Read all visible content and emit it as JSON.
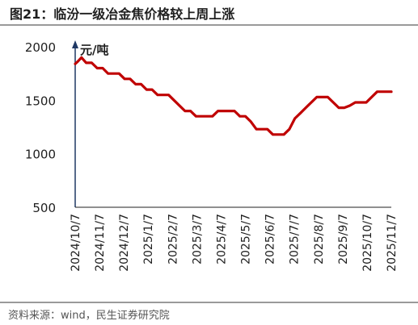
{
  "figure": {
    "title": "图21：临汾一级冶金焦价格较上周上涨",
    "source": "资料来源：wind，民生证券研究院"
  },
  "colors": {
    "line": "#c00000",
    "axis": "#1f3864",
    "text": "#1f1f1f"
  },
  "chart_data": {
    "type": "line",
    "ylabel": "元/吨",
    "ylim": [
      500,
      2000
    ],
    "yticks": [
      500,
      1000,
      1500,
      2000
    ],
    "xticks": [
      "2024/10/7",
      "2024/11/7",
      "2024/12/7",
      "2025/1/7",
      "2025/2/7",
      "2025/3/7",
      "2025/4/7",
      "2025/5/7",
      "2025/6/7",
      "2025/7/7",
      "2025/8/7",
      "2025/9/7",
      "2025/10/7",
      "2025/11/7"
    ],
    "xlim": [
      "2024-09-30",
      "2025-11-07"
    ],
    "x": [
      "2024-09-30",
      "2024-10-03",
      "2024-10-08",
      "2024-10-14",
      "2024-10-21",
      "2024-10-28",
      "2024-11-04",
      "2024-11-11",
      "2024-11-18",
      "2024-11-25",
      "2024-12-02",
      "2024-12-09",
      "2024-12-16",
      "2024-12-23",
      "2024-12-30",
      "2025-01-06",
      "2025-01-13",
      "2025-01-20",
      "2025-01-27",
      "2025-02-03",
      "2025-02-10",
      "2025-02-17",
      "2025-02-24",
      "2025-03-03",
      "2025-03-10",
      "2025-03-17",
      "2025-03-24",
      "2025-03-31",
      "2025-04-07",
      "2025-04-14",
      "2025-04-21",
      "2025-04-28",
      "2025-05-05",
      "2025-05-12",
      "2025-05-19",
      "2025-05-26",
      "2025-06-02",
      "2025-06-09",
      "2025-06-16",
      "2025-06-23",
      "2025-06-30",
      "2025-07-07",
      "2025-07-14",
      "2025-07-21",
      "2025-07-28",
      "2025-08-04",
      "2025-08-11",
      "2025-08-18",
      "2025-08-25",
      "2025-09-01",
      "2025-09-08",
      "2025-09-15",
      "2025-09-22",
      "2025-09-29",
      "2025-10-06",
      "2025-10-13",
      "2025-10-20",
      "2025-10-27",
      "2025-11-03",
      "2025-11-07"
    ],
    "series": [
      {
        "values": [
          1840,
          1860,
          1900,
          1850,
          1850,
          1800,
          1800,
          1750,
          1750,
          1750,
          1700,
          1700,
          1650,
          1650,
          1600,
          1600,
          1550,
          1550,
          1550,
          1500,
          1450,
          1400,
          1400,
          1350,
          1350,
          1350,
          1350,
          1400,
          1400,
          1400,
          1400,
          1350,
          1350,
          1300,
          1230,
          1230,
          1230,
          1180,
          1180,
          1180,
          1230,
          1330,
          1380,
          1430,
          1480,
          1530,
          1530,
          1530,
          1480,
          1430,
          1430,
          1450,
          1480,
          1480,
          1480,
          1530,
          1580,
          1580,
          1580,
          1580
        ]
      }
    ],
    "legend": "none",
    "grid": false
  }
}
